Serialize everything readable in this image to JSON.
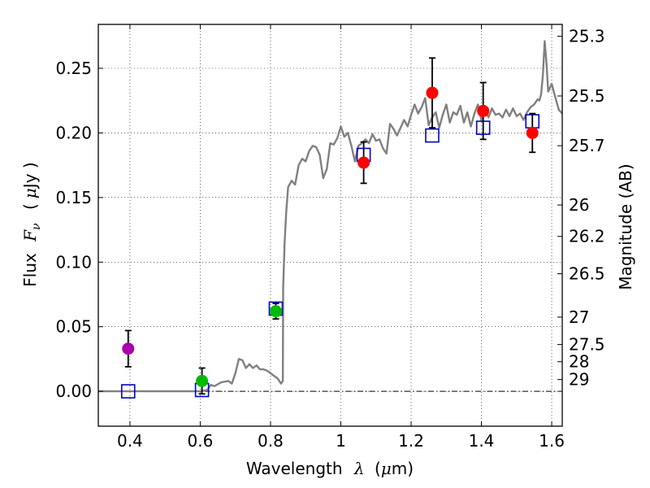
{
  "chart_data": {
    "type": "scatter",
    "xlabel_prefix": "Wavelength",
    "xlabel_symbol": "λ",
    "xlabel_unit_open": "(",
    "xlabel_unit_mu": "μ",
    "xlabel_unit_rest": "m)",
    "ylabel_prefix": "Flux",
    "ylabel_symbol": "F",
    "ylabel_sub": "ν",
    "ylabel_unit_open": "(",
    "ylabel_unit_mu": "μ",
    "ylabel_unit_rest": "Jy )",
    "y2label": "Magnitude (AB)",
    "xlim": [
      0.31,
      1.63
    ],
    "ylim": [
      -0.027,
      0.284
    ],
    "xticks": [
      0.4,
      0.6,
      0.8,
      1.0,
      1.2,
      1.4,
      1.6
    ],
    "xtick_labels": [
      "0.4",
      "0.6",
      "0.8",
      "1",
      "1.2",
      "1.4",
      "1.6"
    ],
    "yticks": [
      0.0,
      0.05,
      0.1,
      0.15,
      0.2,
      0.25
    ],
    "ytick_labels": [
      "0.00",
      "0.05",
      "0.10",
      "0.15",
      "0.20",
      "0.25"
    ],
    "y2ticks": [
      {
        "label": "25.3",
        "flux": 0.2748
      },
      {
        "label": "25.5",
        "flux": 0.2286
      },
      {
        "label": "25.7",
        "flux": 0.1901
      },
      {
        "label": "26",
        "flux": 0.1442
      },
      {
        "label": "26.2",
        "flux": 0.1199
      },
      {
        "label": "26.5",
        "flux": 0.091
      },
      {
        "label": "27",
        "flux": 0.0574
      },
      {
        "label": "27.5",
        "flux": 0.0362
      },
      {
        "label": "28",
        "flux": 0.0229
      },
      {
        "label": "29",
        "flux": 0.0091
      }
    ],
    "grid": true,
    "sed_model": {
      "name": "model spectrum",
      "color": "#808080",
      "x": [
        0.31,
        0.35,
        0.4,
        0.45,
        0.5,
        0.55,
        0.6,
        0.62,
        0.63,
        0.64,
        0.66,
        0.68,
        0.69,
        0.7,
        0.71,
        0.72,
        0.73,
        0.74,
        0.75,
        0.76,
        0.77,
        0.78,
        0.79,
        0.8,
        0.81,
        0.82,
        0.83,
        0.835,
        0.836,
        0.84,
        0.845,
        0.85,
        0.86,
        0.87,
        0.88,
        0.89,
        0.9,
        0.91,
        0.92,
        0.93,
        0.94,
        0.95,
        0.96,
        0.97,
        0.98,
        0.99,
        1.0,
        1.01,
        1.02,
        1.03,
        1.04,
        1.05,
        1.06,
        1.07,
        1.08,
        1.09,
        1.1,
        1.11,
        1.12,
        1.13,
        1.14,
        1.15,
        1.16,
        1.17,
        1.18,
        1.19,
        1.2,
        1.21,
        1.22,
        1.23,
        1.24,
        1.25,
        1.26,
        1.27,
        1.28,
        1.29,
        1.3,
        1.31,
        1.32,
        1.33,
        1.34,
        1.35,
        1.36,
        1.37,
        1.38,
        1.39,
        1.4,
        1.41,
        1.42,
        1.43,
        1.44,
        1.45,
        1.46,
        1.47,
        1.48,
        1.49,
        1.5,
        1.51,
        1.52,
        1.53,
        1.54,
        1.55,
        1.56,
        1.565,
        1.57,
        1.575,
        1.58,
        1.585,
        1.59,
        1.6,
        1.61,
        1.62,
        1.63
      ],
      "y": [
        0.0,
        0.0,
        0.0,
        0.0,
        0.0,
        0.0,
        0.0,
        0.001,
        0.005,
        0.004,
        0.007,
        0.008,
        0.006,
        0.014,
        0.025,
        0.024,
        0.018,
        0.021,
        0.018,
        0.02,
        0.017,
        0.017,
        0.016,
        0.014,
        0.012,
        0.01,
        0.006,
        0.008,
        0.08,
        0.115,
        0.14,
        0.158,
        0.163,
        0.16,
        0.175,
        0.18,
        0.178,
        0.186,
        0.19,
        0.189,
        0.183,
        0.165,
        0.172,
        0.192,
        0.191,
        0.196,
        0.205,
        0.197,
        0.2,
        0.19,
        0.178,
        0.19,
        0.192,
        0.195,
        0.192,
        0.199,
        0.194,
        0.195,
        0.188,
        0.184,
        0.207,
        0.203,
        0.198,
        0.204,
        0.21,
        0.205,
        0.214,
        0.222,
        0.215,
        0.22,
        0.227,
        0.206,
        0.212,
        0.216,
        0.204,
        0.214,
        0.222,
        0.208,
        0.216,
        0.214,
        0.221,
        0.208,
        0.216,
        0.205,
        0.215,
        0.222,
        0.21,
        0.219,
        0.212,
        0.219,
        0.214,
        0.215,
        0.212,
        0.218,
        0.213,
        0.219,
        0.213,
        0.215,
        0.21,
        0.216,
        0.22,
        0.222,
        0.226,
        0.225,
        0.23,
        0.245,
        0.271,
        0.255,
        0.232,
        0.238,
        0.228,
        0.218,
        0.215
      ]
    },
    "model_photometry": {
      "name": "model photometry",
      "color": "#0000cc",
      "x": [
        0.395,
        0.605,
        0.815,
        1.065,
        1.26,
        1.405,
        1.545
      ],
      "y": [
        0.0,
        0.001,
        0.064,
        0.183,
        0.198,
        0.204,
        0.209
      ]
    },
    "observed": [
      {
        "x": 0.395,
        "y": 0.033,
        "err": 0.014,
        "color": "#aa00aa"
      },
      {
        "x": 0.605,
        "y": 0.008,
        "err": 0.01,
        "color": "#00bb00"
      },
      {
        "x": 0.815,
        "y": 0.062,
        "err": 0.006,
        "color": "#00bb00"
      },
      {
        "x": 1.065,
        "y": 0.177,
        "err": 0.016,
        "color": "#ff0000"
      },
      {
        "x": 1.26,
        "y": 0.231,
        "err": 0.027,
        "color": "#ff0000"
      },
      {
        "x": 1.405,
        "y": 0.217,
        "err": 0.022,
        "color": "#ff0000"
      },
      {
        "x": 1.545,
        "y": 0.2,
        "err": 0.015,
        "color": "#ff0000"
      }
    ]
  }
}
